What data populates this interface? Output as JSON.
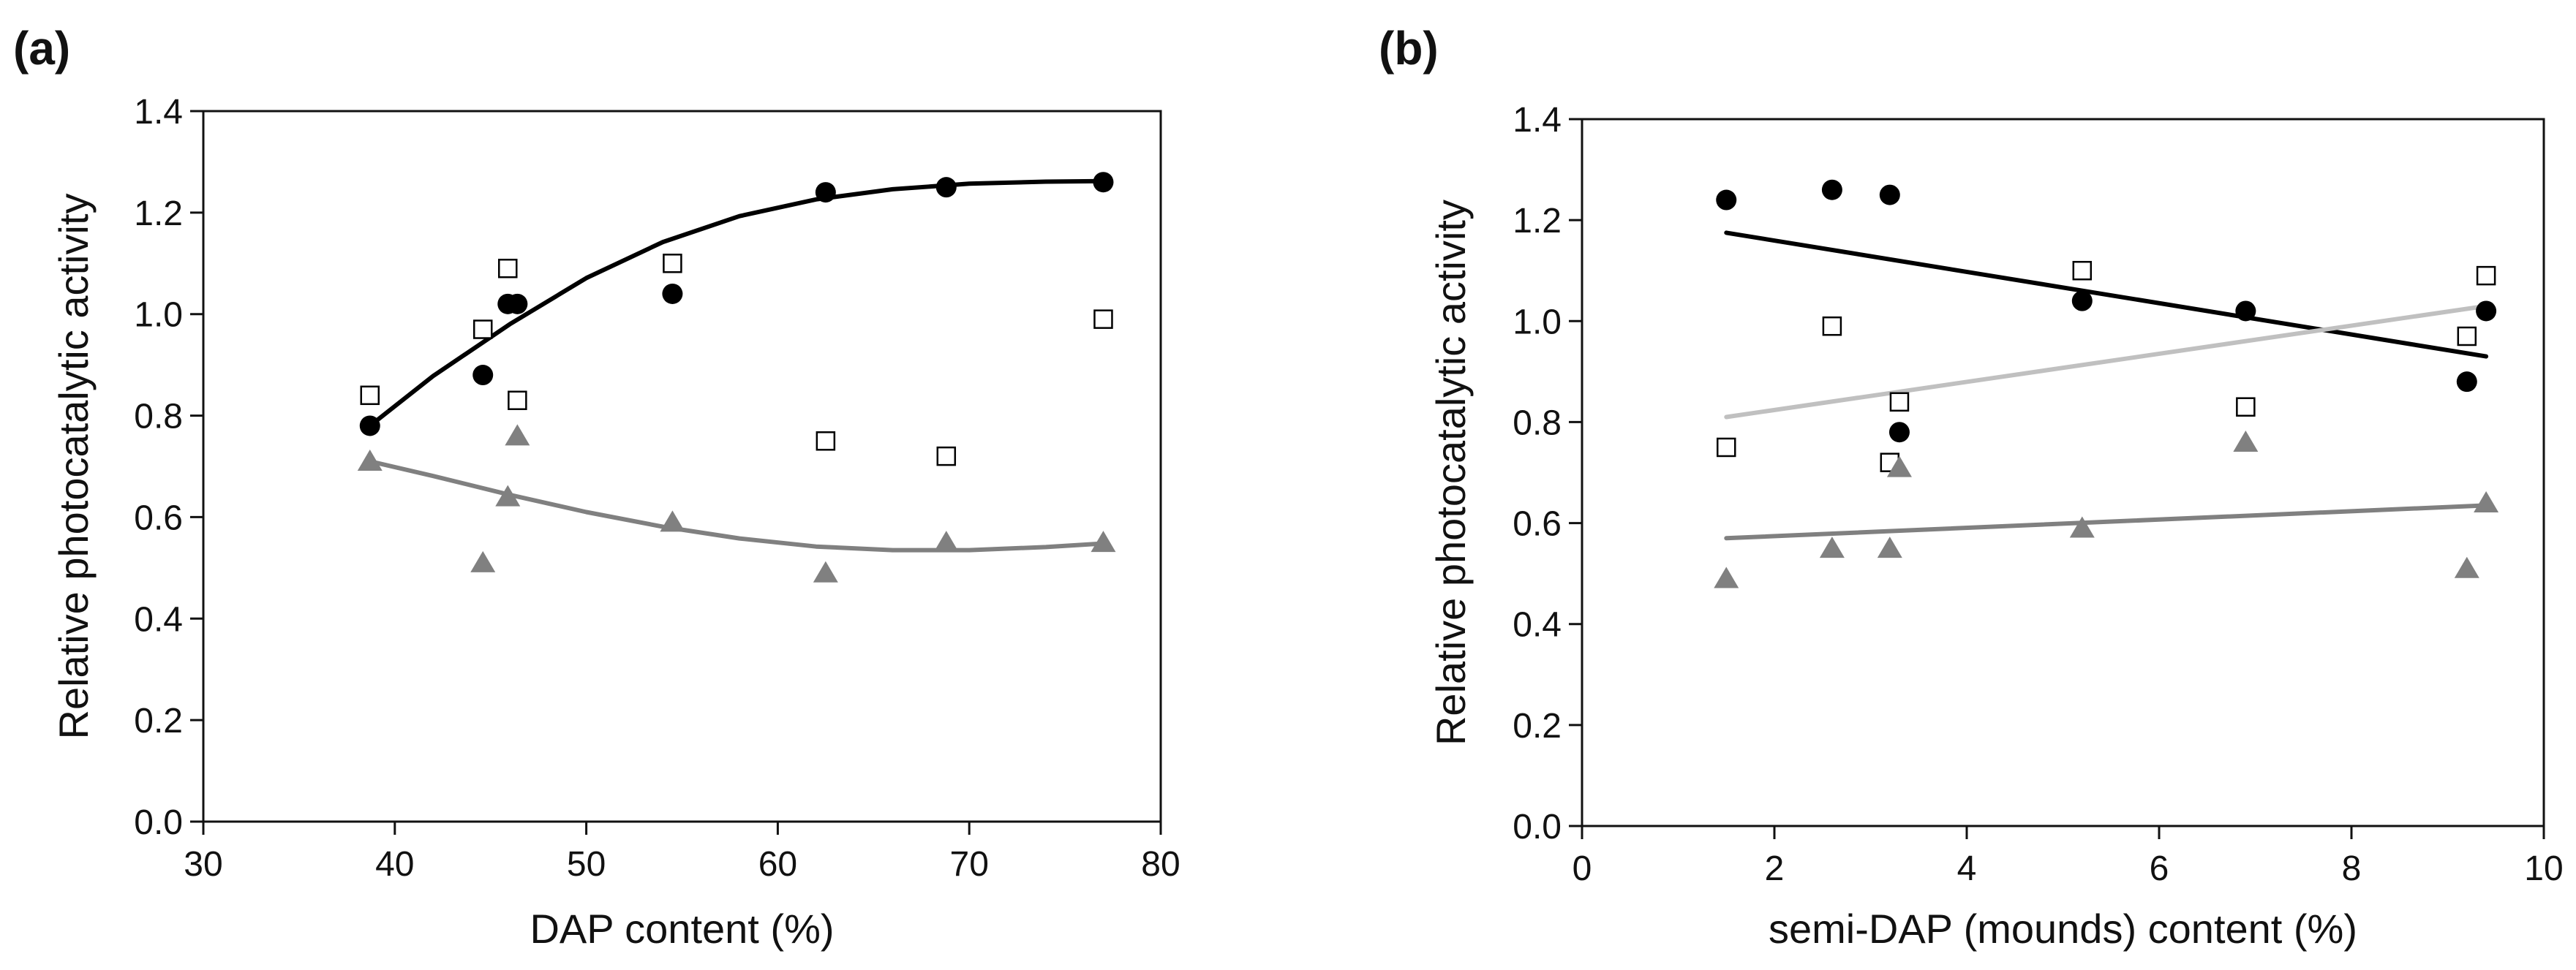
{
  "chart_data": [
    {
      "panel_label": "(a)",
      "type": "scatter",
      "xlabel": "DAP content (%)",
      "ylabel": "Relative photocatalytic activity",
      "xlim": [
        30,
        80
      ],
      "ylim": [
        0.0,
        1.4
      ],
      "xticks": [
        30,
        40,
        50,
        60,
        70,
        80
      ],
      "xtick_labels": [
        "30",
        "40",
        "50",
        "60",
        "70",
        "80"
      ],
      "yticks": [
        0.0,
        0.2,
        0.4,
        0.6,
        0.8,
        1.0,
        1.2,
        1.4
      ],
      "ytick_labels": [
        "0.0",
        "0.2",
        "0.4",
        "0.6",
        "0.8",
        "1.0",
        "1.2",
        "1.4"
      ],
      "series": [
        {
          "name": "filled circles",
          "marker": "circle-filled",
          "color": "#000000",
          "points": [
            [
              38.7,
              0.78
            ],
            [
              44.6,
              0.88
            ],
            [
              45.9,
              1.02
            ],
            [
              46.4,
              1.02
            ],
            [
              54.5,
              1.04
            ],
            [
              62.5,
              1.24
            ],
            [
              68.8,
              1.25
            ],
            [
              77.0,
              1.26
            ]
          ],
          "fit": {
            "kind": "polyline",
            "points": [
              [
                38.7,
                0.78
              ],
              [
                42,
                0.878
              ],
              [
                46,
                0.98
              ],
              [
                50,
                1.071
              ],
              [
                54,
                1.142
              ],
              [
                58,
                1.193
              ],
              [
                62,
                1.226
              ],
              [
                66,
                1.246
              ],
              [
                70,
                1.257
              ],
              [
                74,
                1.261
              ],
              [
                77,
                1.262
              ]
            ]
          }
        },
        {
          "name": "open squares",
          "marker": "square-open",
          "color": "#000000",
          "points": [
            [
              38.7,
              0.84
            ],
            [
              44.6,
              0.97
            ],
            [
              45.9,
              1.09
            ],
            [
              46.4,
              0.83
            ],
            [
              54.5,
              1.1
            ],
            [
              62.5,
              0.75
            ],
            [
              68.8,
              0.72
            ],
            [
              77.0,
              0.99
            ]
          ]
        },
        {
          "name": "gray triangles",
          "marker": "triangle-filled",
          "color": "#808080",
          "points": [
            [
              38.7,
              0.71
            ],
            [
              44.6,
              0.51
            ],
            [
              45.9,
              0.64
            ],
            [
              46.4,
              0.76
            ],
            [
              54.5,
              0.59
            ],
            [
              62.5,
              0.49
            ],
            [
              68.8,
              0.55
            ],
            [
              77.0,
              0.55
            ]
          ],
          "fit": {
            "kind": "polyline",
            "points": [
              [
                38.7,
                0.71
              ],
              [
                42,
                0.681
              ],
              [
                46,
                0.644
              ],
              [
                50,
                0.61
              ],
              [
                54,
                0.581
              ],
              [
                58,
                0.558
              ],
              [
                62,
                0.542
              ],
              [
                66,
                0.535
              ],
              [
                70,
                0.535
              ],
              [
                74,
                0.541
              ],
              [
                77,
                0.548
              ]
            ]
          }
        }
      ]
    },
    {
      "panel_label": "(b)",
      "type": "scatter",
      "xlabel": "semi-DAP (mounds) content (%)",
      "ylabel": "Relative photocatalytic activity",
      "xlim": [
        0,
        10
      ],
      "ylim": [
        0.0,
        1.4
      ],
      "xticks": [
        0,
        2,
        4,
        6,
        8,
        10
      ],
      "xtick_labels": [
        "0",
        "2",
        "4",
        "6",
        "8",
        "10"
      ],
      "yticks": [
        0.0,
        0.2,
        0.4,
        0.6,
        0.8,
        1.0,
        1.2,
        1.4
      ],
      "ytick_labels": [
        "0.0",
        "0.2",
        "0.4",
        "0.6",
        "0.8",
        "1.0",
        "1.2",
        "1.4"
      ],
      "series": [
        {
          "name": "filled circles",
          "marker": "circle-filled",
          "color": "#000000",
          "points": [
            [
              1.5,
              1.24
            ],
            [
              2.6,
              1.26
            ],
            [
              3.2,
              1.25
            ],
            [
              3.3,
              0.78
            ],
            [
              5.2,
              1.04
            ],
            [
              6.9,
              1.02
            ],
            [
              9.2,
              0.88
            ],
            [
              9.4,
              1.02
            ]
          ],
          "fit": {
            "kind": "line",
            "points": [
              [
                1.5,
                1.175
              ],
              [
                9.4,
                0.93
              ]
            ]
          }
        },
        {
          "name": "open squares",
          "marker": "square-open",
          "color": "#000000",
          "points": [
            [
              1.5,
              0.75
            ],
            [
              2.6,
              0.99
            ],
            [
              3.2,
              0.72
            ],
            [
              3.3,
              0.84
            ],
            [
              5.2,
              1.1
            ],
            [
              6.9,
              0.83
            ],
            [
              9.2,
              0.97
            ],
            [
              9.4,
              1.09
            ]
          ],
          "fit": {
            "kind": "line",
            "color": "#c0c0c0",
            "points": [
              [
                1.5,
                0.81
              ],
              [
                9.4,
                1.03
              ]
            ]
          }
        },
        {
          "name": "gray triangles",
          "marker": "triangle-filled",
          "color": "#808080",
          "points": [
            [
              1.5,
              0.49
            ],
            [
              2.6,
              0.55
            ],
            [
              3.2,
              0.55
            ],
            [
              3.3,
              0.71
            ],
            [
              5.2,
              0.59
            ],
            [
              6.9,
              0.76
            ],
            [
              9.2,
              0.51
            ],
            [
              9.4,
              0.64
            ]
          ],
          "fit": {
            "kind": "line",
            "points": [
              [
                1.5,
                0.57
              ],
              [
                9.4,
                0.635
              ]
            ]
          }
        }
      ]
    }
  ]
}
